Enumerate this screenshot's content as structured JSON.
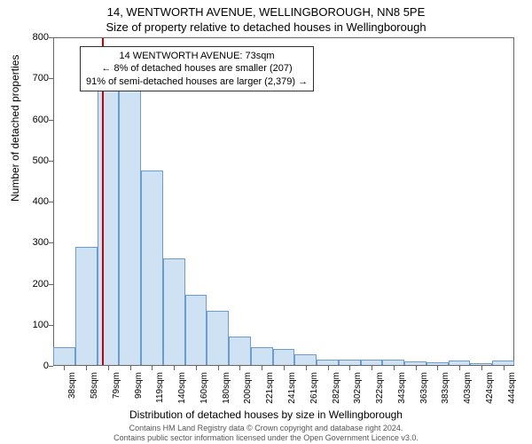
{
  "title": "14, WENTWORTH AVENUE, WELLINGBOROUGH, NN8 5PE",
  "subtitle": "Size of property relative to detached houses in Wellingborough",
  "ylabel": "Number of detached properties",
  "xlabel": "Distribution of detached houses by size in Wellingborough",
  "footer_line1": "Contains HM Land Registry data © Crown copyright and database right 2024.",
  "footer_line2": "Contains public sector information licensed under the Open Government Licence v3.0.",
  "chart": {
    "type": "bar",
    "ylim": [
      0,
      800
    ],
    "ytick_step": 100,
    "yticks": [
      0,
      100,
      200,
      300,
      400,
      500,
      600,
      700,
      800
    ],
    "categories": [
      "38sqm",
      "58sqm",
      "79sqm",
      "99sqm",
      "119sqm",
      "140sqm",
      "160sqm",
      "180sqm",
      "200sqm",
      "221sqm",
      "241sqm",
      "261sqm",
      "282sqm",
      "302sqm",
      "322sqm",
      "343sqm",
      "363sqm",
      "383sqm",
      "403sqm",
      "424sqm",
      "444sqm"
    ],
    "values": [
      44,
      287,
      670,
      670,
      474,
      260,
      170,
      132,
      70,
      44,
      38,
      26,
      14,
      14,
      12,
      12,
      8,
      6,
      10,
      4,
      10
    ],
    "bar_fill": "#cfe2f3",
    "bar_stroke": "#6a9bd1",
    "background_color": "#ffffff",
    "axis_color": "#666666",
    "bar_width_ratio": 1.0,
    "marker": {
      "position_category_index": 1.73,
      "color": "#cc0000"
    },
    "annotation": {
      "line1": "14 WENTWORTH AVENUE: 73sqm",
      "line2": "← 8% of detached houses are smaller (207)",
      "line3": "91% of semi-detached houses are larger (2,379) →"
    }
  }
}
